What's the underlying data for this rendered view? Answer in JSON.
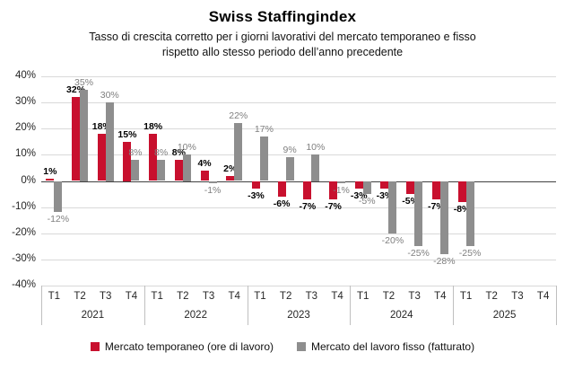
{
  "chart_data": {
    "type": "bar",
    "title": "Swiss Staffingindex",
    "subtitle": "Tasso di crescita corretto per i giorni lavorativi del mercato temporaneo e fisso rispetto allo stesso periodo dell’anno precedente",
    "ylim": [
      -40,
      40
    ],
    "yticks": [
      40,
      30,
      20,
      10,
      0,
      -10,
      -20,
      -30,
      -40
    ],
    "ytick_suffix": "%",
    "grid": true,
    "legend_position": "bottom",
    "groups": [
      {
        "year": "2021",
        "quarters": [
          "T1",
          "T2",
          "T3",
          "T4"
        ]
      },
      {
        "year": "2022",
        "quarters": [
          "T1",
          "T2",
          "T3",
          "T4"
        ]
      },
      {
        "year": "2023",
        "quarters": [
          "T1",
          "T2",
          "T3",
          "T4"
        ]
      },
      {
        "year": "2024",
        "quarters": [
          "T1",
          "T2",
          "T3",
          "T4"
        ]
      },
      {
        "year": "2025",
        "quarters": [
          "T1",
          "T2",
          "T3",
          "T4"
        ]
      }
    ],
    "categories": [
      "T1 2021",
      "T2 2021",
      "T3 2021",
      "T4 2021",
      "T1 2022",
      "T2 2022",
      "T3 2022",
      "T4 2022",
      "T1 2023",
      "T2 2023",
      "T3 2023",
      "T4 2023",
      "T1 2024",
      "T2 2024",
      "T3 2024",
      "T4 2024",
      "T1 2025",
      "T2 2025",
      "T3 2025",
      "T4 2025"
    ],
    "series": [
      {
        "name": "Mercato temporaneo (ore di lavoro)",
        "color": "#C8102E",
        "values": [
          1,
          32,
          18,
          15,
          18,
          8,
          4,
          2,
          -3,
          -6,
          -7,
          -7,
          -3,
          -3,
          -5,
          -7,
          -8,
          null,
          null,
          null
        ]
      },
      {
        "name": "Mercato del lavoro fisso (fatturato)",
        "color": "#8E8E8E",
        "values": [
          -12,
          35,
          30,
          8,
          8,
          10,
          -1,
          22,
          17,
          9,
          10,
          -1,
          -5,
          -20,
          -25,
          -28,
          -25,
          null,
          null,
          null
        ]
      }
    ]
  }
}
